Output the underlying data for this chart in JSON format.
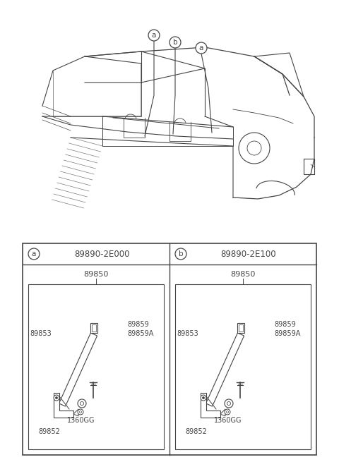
{
  "bg_color": "#ffffff",
  "lc": "#444444",
  "panel_a_part": "89890-2E000",
  "panel_b_part": "89890-2E100",
  "sub_label": "89850",
  "fig_w": 4.8,
  "fig_h": 6.55,
  "dpi": 100
}
